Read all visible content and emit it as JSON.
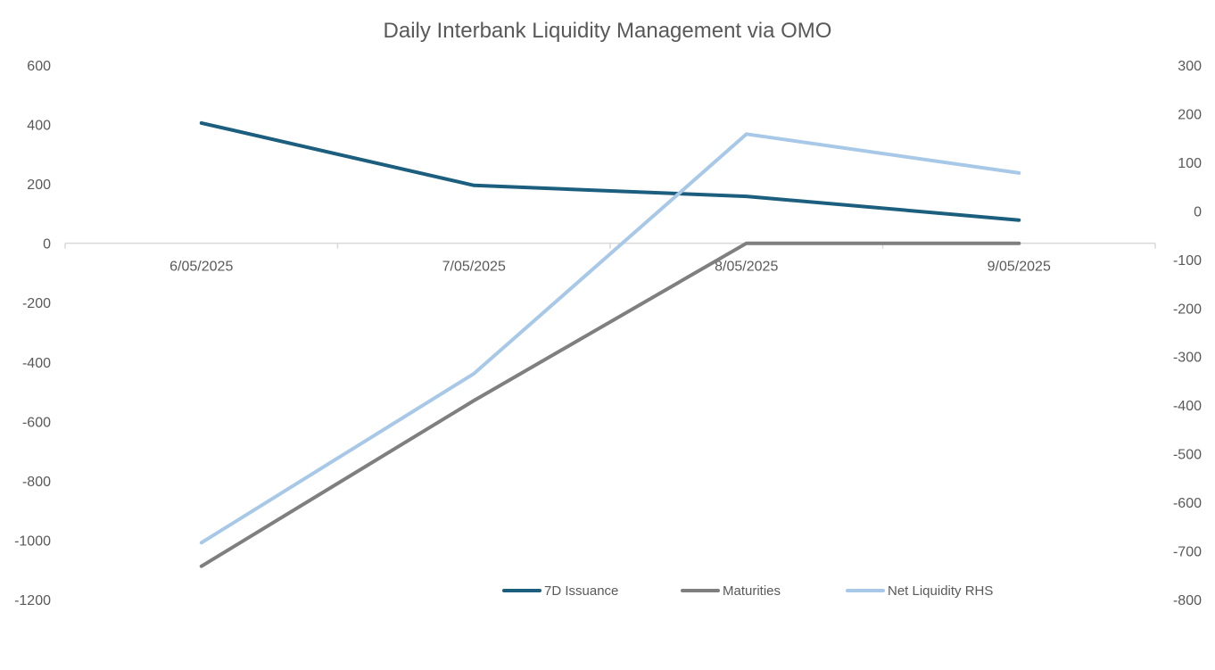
{
  "chart_data": {
    "type": "line",
    "title": "Daily Interbank Liquidity Management via OMO",
    "categories": [
      "6/05/2025",
      "7/05/2025",
      "8/05/2025",
      "9/05/2025"
    ],
    "y_left": {
      "ticks": [
        600,
        400,
        200,
        0,
        -200,
        -400,
        -600,
        -800,
        -1000,
        -1200
      ],
      "range": [
        -1200,
        600
      ]
    },
    "y_right": {
      "ticks": [
        300,
        200,
        100,
        0,
        -100,
        -200,
        -300,
        -400,
        -500,
        -600,
        -700,
        -800
      ],
      "range": [
        -800,
        300
      ]
    },
    "series": [
      {
        "name": "7D Issuance",
        "axis": "left",
        "color": "#1b5e7e",
        "values": [
          405,
          195,
          158,
          78
        ]
      },
      {
        "name": "Maturities",
        "axis": "left",
        "color": "#7f7f7f",
        "values": [
          -1088,
          -530,
          0,
          0
        ]
      },
      {
        "name": "Net Liquidity RHS",
        "axis": "right",
        "color": "#a8c8e8",
        "values": [
          -683,
          -335,
          158,
          78
        ]
      }
    ],
    "legend": {
      "position": "bottom-right"
    }
  }
}
